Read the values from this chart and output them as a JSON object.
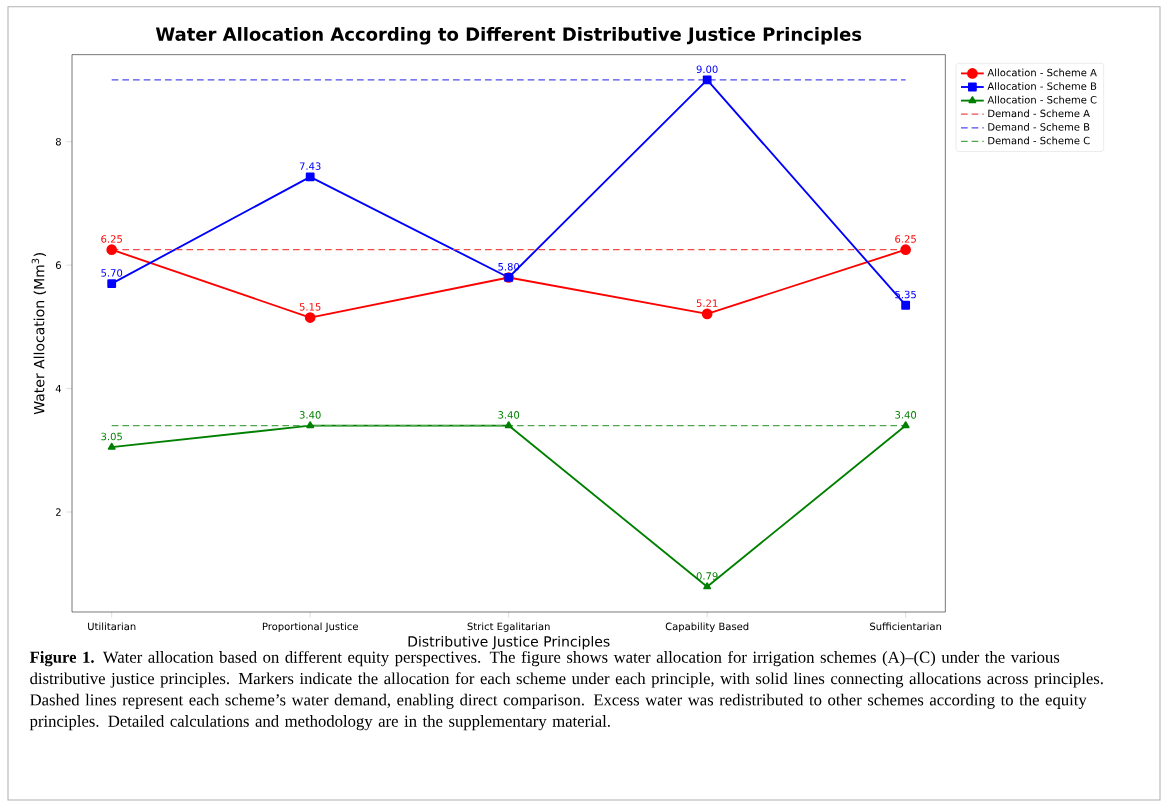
{
  "chart_data": {
    "type": "line",
    "title": "Water Allocation According to Different Distributive Justice Principles",
    "xlabel": "Distributive Justice Principles",
    "ylabel": "Water Allocation (Mm$^{3}$)",
    "categories": [
      "Utilitarian",
      "Proportional Justice",
      "Strict Egalitarian",
      "Capability Based",
      "Sufficientarian"
    ],
    "series": [
      {
        "name": "Allocation - Scheme A",
        "color": "#ff0000",
        "marker": "circle",
        "line_style": "solid",
        "values": [
          6.25,
          5.15,
          5.8,
          5.21,
          6.25
        ],
        "value_labels": [
          "6.25",
          "5.15",
          null,
          "5.21",
          "6.25"
        ]
      },
      {
        "name": "Allocation - Scheme B",
        "color": "#0000ff",
        "marker": "square",
        "line_style": "solid",
        "values": [
          5.7,
          7.43,
          5.8,
          9.0,
          5.35
        ],
        "value_labels": [
          "5.70",
          "7.43",
          "5.80",
          "9.00",
          "5.35"
        ]
      },
      {
        "name": "Allocation - Scheme C",
        "color": "#008000",
        "marker": "triangle",
        "line_style": "solid",
        "values": [
          3.05,
          3.4,
          3.4,
          0.79,
          3.4
        ],
        "value_labels": [
          "3.05",
          "3.40",
          "3.40",
          "0.79",
          "3.40"
        ]
      },
      {
        "name": "Demand - Scheme A",
        "color": "#f04c4c",
        "marker": "none",
        "line_style": "dashed",
        "values": [
          6.25,
          6.25,
          6.25,
          6.25,
          6.25
        ]
      },
      {
        "name": "Demand - Scheme B",
        "color": "#4c4cf0",
        "marker": "none",
        "line_style": "dashed",
        "values": [
          9.0,
          9.0,
          9.0,
          9.0,
          9.0
        ]
      },
      {
        "name": "Demand - Scheme C",
        "color": "#4ca64c",
        "marker": "none",
        "line_style": "dashed",
        "values": [
          3.4,
          3.4,
          3.4,
          3.4,
          3.4
        ]
      }
    ],
    "ylim": [
      0.38,
      9.41
    ],
    "yticks": [
      2,
      4,
      6,
      8
    ],
    "legend": "right",
    "annotations": [
      "**Figure 1.** Water allocation based on different equity perspectives. The figure shows water allocation for irrigation schemes (A)–(C) under the various distributive justice principles. Markers indicate the allocation for each scheme under each principle, with solid lines connecting allocations across principles. Dashed lines represent each scheme’s water demand, enabling direct comparison. Excess water was redistributed to other schemes according to the equity principles. Detailed calculations and methodology are in the supplementary material."
    ]
  }
}
